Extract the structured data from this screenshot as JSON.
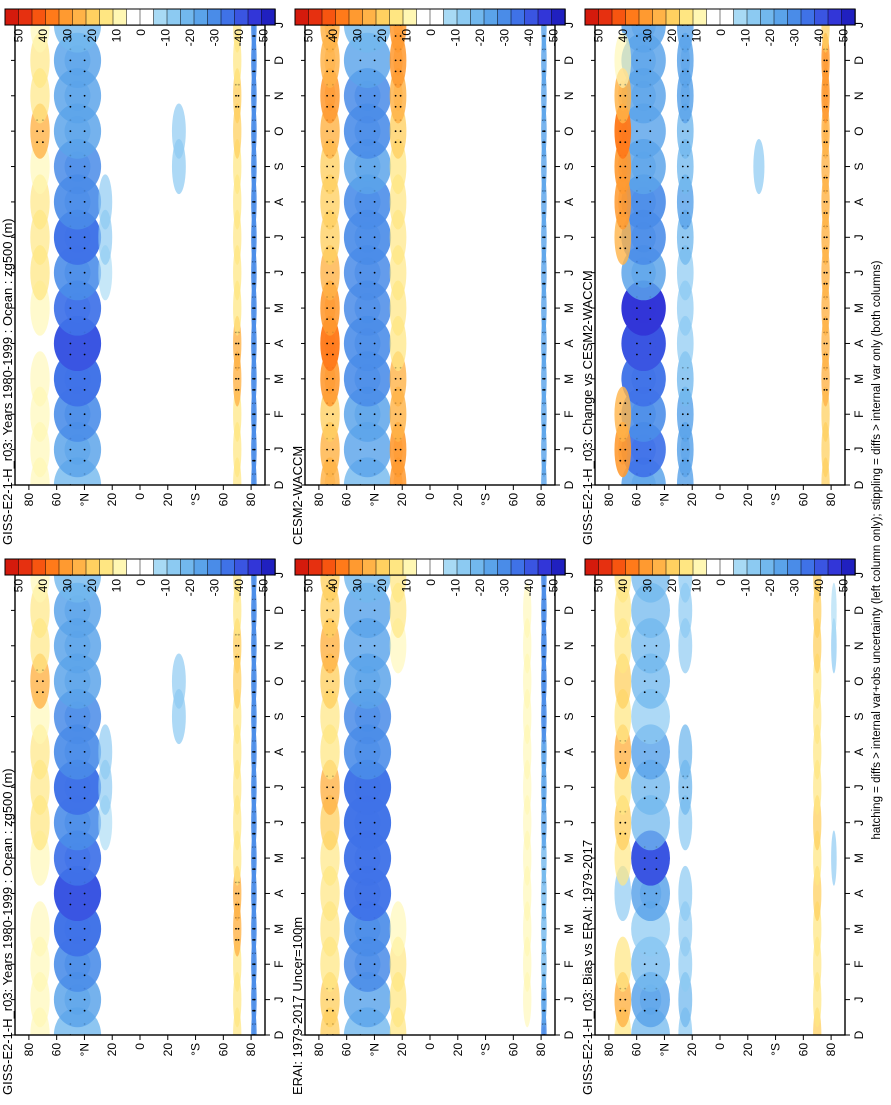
{
  "footer": "hatching = diffs > internal var+obs uncertainty (left column only); stippling = diffs > internal var only (both columns)",
  "colors": {
    "scale": [
      "#2020c0",
      "#3236d8",
      "#3a55e2",
      "#3f72e8",
      "#4a8ce8",
      "#5aa3ea",
      "#72b8ee",
      "#8ccaf2",
      "#a8daf5",
      "#ffffff",
      "#ffffff",
      "#fff7b3",
      "#ffe682",
      "#ffd060",
      "#ffb347",
      "#ff9a30",
      "#ff7a1a",
      "#f75510",
      "#e63010",
      "#d51a0c"
    ],
    "frame": "#000000"
  },
  "colorbar": {
    "tick_labels": [
      "50",
      "40",
      "30",
      "20",
      "10",
      "0",
      "-10",
      "-20",
      "-30",
      "-40",
      "-50"
    ]
  },
  "axes": {
    "lat_labels": [
      "80",
      "60",
      "°N",
      "20",
      "0",
      "20",
      "°S",
      "60",
      "80"
    ],
    "month_labels": [
      "D",
      "J",
      "F",
      "M",
      "A",
      "M",
      "J",
      "J",
      "A",
      "S",
      "O",
      "N",
      "D",
      "J"
    ]
  },
  "chart_data": [
    {
      "type": "heatmap",
      "title": "GISS-E2-1-H_r03: Years 1980-1999 : Ocean : zg500 (m)",
      "xlabel": "",
      "ylabel": "",
      "x": [
        "D",
        "J",
        "F",
        "M",
        "A",
        "M",
        "J",
        "J",
        "A",
        "S",
        "O",
        "N",
        "D",
        "J"
      ],
      "y_range": [
        -90,
        90
      ],
      "color_range": [
        -55,
        55
      ],
      "features": [
        {
          "lat": 45,
          "width": 17,
          "values": [
            -22,
            -26,
            -30,
            -38,
            -42,
            -34,
            -30,
            -38,
            -32,
            -28,
            -26,
            -26,
            -26,
            -22
          ]
        },
        {
          "lat": 72,
          "width": 7,
          "values": [
            10,
            10,
            8,
            6,
            0,
            10,
            16,
            12,
            12,
            8,
            22,
            12,
            12,
            10
          ]
        },
        {
          "lat": 25,
          "width": 5,
          "values": [
            0,
            0,
            0,
            0,
            0,
            0,
            -10,
            -12,
            -12,
            0,
            0,
            0,
            0,
            0
          ]
        },
        {
          "lat": -28,
          "width": 5,
          "values": [
            0,
            0,
            0,
            0,
            0,
            0,
            0,
            0,
            0,
            -14,
            -12,
            0,
            0,
            0
          ]
        },
        {
          "lat": -70,
          "width": 3,
          "values": [
            16,
            16,
            16,
            22,
            22,
            16,
            16,
            14,
            16,
            16,
            18,
            20,
            16,
            16
          ]
        },
        {
          "lat": -82,
          "width": 2,
          "values": [
            -30,
            -30,
            -30,
            -30,
            -30,
            -30,
            -30,
            -30,
            -30,
            -30,
            -30,
            -30,
            -30,
            -30
          ]
        }
      ]
    },
    {
      "type": "heatmap",
      "title": "GISS-E2-1-H_r03: Years 1980-1999 : Ocean : zg500 (m)",
      "xlabel": "",
      "ylabel": "",
      "x": [
        "D",
        "J",
        "F",
        "M",
        "A",
        "M",
        "J",
        "J",
        "A",
        "S",
        "O",
        "N",
        "D",
        "J"
      ],
      "y_range": [
        -90,
        90
      ],
      "color_range": [
        -55,
        55
      ],
      "features": [
        {
          "lat": 45,
          "width": 17,
          "values": [
            -22,
            -26,
            -30,
            -38,
            -42,
            -34,
            -30,
            -38,
            -32,
            -28,
            -26,
            -26,
            -26,
            -22
          ]
        },
        {
          "lat": 72,
          "width": 7,
          "values": [
            10,
            10,
            8,
            6,
            0,
            10,
            16,
            12,
            12,
            8,
            22,
            12,
            12,
            10
          ]
        },
        {
          "lat": 25,
          "width": 5,
          "values": [
            0,
            0,
            0,
            0,
            0,
            0,
            -10,
            -12,
            -12,
            0,
            0,
            0,
            0,
            0
          ]
        },
        {
          "lat": -28,
          "width": 5,
          "values": [
            0,
            0,
            0,
            0,
            0,
            0,
            0,
            0,
            0,
            -14,
            -12,
            0,
            0,
            0
          ]
        },
        {
          "lat": -70,
          "width": 3,
          "values": [
            16,
            16,
            16,
            22,
            22,
            16,
            16,
            14,
            16,
            16,
            18,
            20,
            16,
            16
          ]
        },
        {
          "lat": -82,
          "width": 2,
          "values": [
            -30,
            -30,
            -30,
            -30,
            -30,
            -30,
            -30,
            -30,
            -30,
            -30,
            -30,
            -30,
            -30,
            -30
          ]
        }
      ]
    },
    {
      "type": "heatmap",
      "title": "ERAI: 1979-2017 Uncer=100m",
      "xlabel": "",
      "ylabel": "",
      "x": [
        "D",
        "J",
        "F",
        "M",
        "A",
        "M",
        "J",
        "J",
        "A",
        "S",
        "O",
        "N",
        "D",
        "J"
      ],
      "y_range": [
        -90,
        90
      ],
      "color_range": [
        -55,
        55
      ],
      "features": [
        {
          "lat": 45,
          "width": 17,
          "values": [
            -22,
            -24,
            -28,
            -32,
            -36,
            -36,
            -38,
            -38,
            -30,
            -28,
            -26,
            -24,
            -24,
            -22
          ]
        },
        {
          "lat": 72,
          "width": 7,
          "values": [
            20,
            20,
            16,
            14,
            14,
            12,
            18,
            22,
            16,
            14,
            20,
            24,
            20,
            20
          ]
        },
        {
          "lat": 23,
          "width": 6,
          "values": [
            16,
            16,
            12,
            8,
            0,
            0,
            0,
            0,
            0,
            0,
            0,
            6,
            12,
            16
          ]
        },
        {
          "lat": -70,
          "width": 3,
          "values": [
            0,
            6,
            10,
            10,
            10,
            8,
            6,
            6,
            8,
            10,
            10,
            8,
            6,
            0
          ]
        },
        {
          "lat": -82,
          "width": 2,
          "values": [
            -28,
            -26,
            -22,
            -22,
            -22,
            -22,
            -24,
            -26,
            -26,
            -28,
            -30,
            -32,
            -30,
            -28
          ]
        }
      ]
    },
    {
      "type": "heatmap",
      "title": "CESM2-WACCM",
      "xlabel": "",
      "ylabel": "",
      "x": [
        "D",
        "J",
        "F",
        "M",
        "A",
        "M",
        "J",
        "J",
        "A",
        "S",
        "O",
        "N",
        "D",
        "J"
      ],
      "y_range": [
        -90,
        90
      ],
      "color_range": [
        -55,
        55
      ],
      "features": [
        {
          "lat": 45,
          "width": 17,
          "values": [
            -22,
            -24,
            -26,
            -30,
            -30,
            -28,
            -28,
            -32,
            -30,
            -26,
            -30,
            -28,
            -24,
            -22
          ]
        },
        {
          "lat": 72,
          "width": 7,
          "values": [
            26,
            24,
            20,
            30,
            36,
            30,
            22,
            20,
            20,
            20,
            24,
            28,
            26,
            26
          ]
        },
        {
          "lat": 23,
          "width": 6,
          "values": [
            28,
            30,
            24,
            22,
            16,
            14,
            12,
            12,
            14,
            16,
            20,
            26,
            28,
            28
          ]
        },
        {
          "lat": -70,
          "width": 3,
          "values": [
            0,
            0,
            0,
            0,
            0,
            0,
            0,
            0,
            0,
            0,
            0,
            0,
            0,
            0
          ]
        },
        {
          "lat": -82,
          "width": 2,
          "values": [
            -24,
            -24,
            -24,
            -24,
            -24,
            -24,
            -24,
            -24,
            -24,
            -24,
            -24,
            -24,
            -24,
            -24
          ]
        }
      ]
    },
    {
      "type": "heatmap",
      "title": "GISS-E2-1-H_r03: Bias vs ERAI: 1979-2017",
      "xlabel": "",
      "ylabel": "",
      "x": [
        "D",
        "J",
        "F",
        "M",
        "A",
        "M",
        "J",
        "J",
        "A",
        "S",
        "O",
        "N",
        "D",
        "J"
      ],
      "y_range": [
        -90,
        90
      ],
      "color_range": [
        -55,
        55
      ],
      "features": [
        {
          "lat": 50,
          "width": 14,
          "values": [
            -18,
            -26,
            -20,
            -16,
            -26,
            -40,
            -18,
            -22,
            -24,
            -14,
            -20,
            -20,
            -18,
            -18
          ]
        },
        {
          "lat": 70,
          "width": 6,
          "values": [
            16,
            24,
            14,
            0,
            -12,
            12,
            20,
            16,
            22,
            16,
            18,
            14,
            16,
            16
          ]
        },
        {
          "lat": 25,
          "width": 5,
          "values": [
            -16,
            -18,
            -14,
            -12,
            -14,
            0,
            -16,
            -20,
            -18,
            0,
            0,
            -12,
            -14,
            -16
          ]
        },
        {
          "lat": -70,
          "width": 3,
          "values": [
            18,
            16,
            14,
            16,
            18,
            16,
            18,
            14,
            16,
            14,
            16,
            18,
            18,
            18
          ]
        },
        {
          "lat": -82,
          "width": 2,
          "values": [
            0,
            0,
            0,
            0,
            0,
            -12,
            0,
            0,
            0,
            0,
            0,
            -14,
            -10,
            0
          ]
        }
      ]
    },
    {
      "type": "heatmap",
      "title": "GISS-E2-1-H_r03: Change vs CESM2-WACCM",
      "xlabel": "",
      "ylabel": "",
      "x": [
        "D",
        "J",
        "F",
        "M",
        "A",
        "M",
        "J",
        "J",
        "A",
        "S",
        "O",
        "N",
        "D",
        "J"
      ],
      "y_range": [
        -90,
        90
      ],
      "color_range": [
        -55,
        55
      ],
      "features": [
        {
          "lat": 55,
          "width": 16,
          "values": [
            -26,
            -34,
            -30,
            -36,
            -42,
            -48,
            -26,
            -30,
            -32,
            -26,
            -24,
            -26,
            -26,
            -26
          ]
        },
        {
          "lat": 70,
          "width": 6,
          "values": [
            0,
            30,
            22,
            0,
            0,
            0,
            0,
            22,
            28,
            32,
            36,
            26,
            10,
            0
          ]
        },
        {
          "lat": 25,
          "width": 6,
          "values": [
            -24,
            -26,
            -24,
            -20,
            -14,
            -14,
            -14,
            -20,
            -24,
            -20,
            -22,
            -26,
            -26,
            -24
          ]
        },
        {
          "lat": -28,
          "width": 4,
          "values": [
            0,
            0,
            0,
            0,
            0,
            0,
            0,
            0,
            0,
            -14,
            0,
            0,
            0,
            0
          ]
        },
        {
          "lat": -76,
          "width": 3,
          "values": [
            18,
            18,
            18,
            22,
            22,
            22,
            22,
            24,
            24,
            22,
            26,
            30,
            28,
            18
          ]
        }
      ]
    }
  ]
}
